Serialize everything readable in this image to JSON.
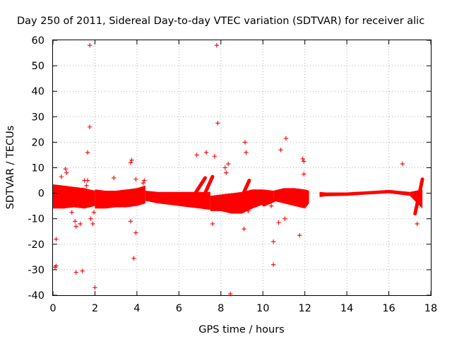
{
  "chart_data": {
    "type": "scatter",
    "title": "Day 250 of 2011, Sidereal Day-to-day VTEC variation (SDTVAR) for receiver alic",
    "xlabel": "GPS time / hours",
    "ylabel": "SDTVAR / TECUs",
    "xlim": [
      0,
      18
    ],
    "ylim": [
      -40,
      60
    ],
    "x_ticks": [
      0,
      2,
      4,
      6,
      8,
      10,
      12,
      14,
      16,
      18
    ],
    "y_ticks": [
      -40,
      -30,
      -20,
      -10,
      0,
      10,
      20,
      30,
      40,
      50,
      60
    ],
    "x_tick_labels": [
      "0",
      "2",
      "4",
      "6",
      "8",
      "10",
      "12",
      "14",
      "16",
      "18"
    ],
    "y_tick_labels": [
      "-40",
      "-30",
      "-20",
      "-10",
      "0",
      "10",
      "20",
      "30",
      "40",
      "50",
      "60"
    ],
    "grid": true,
    "marker": "+",
    "color": "#ff0000",
    "dense_bands": [
      {
        "name": "band-0-2h",
        "x": [
          0.0,
          0.5,
          1.0,
          1.5,
          2.0
        ],
        "upper": [
          3.5,
          3.0,
          2.5,
          2.0,
          1.0
        ],
        "lower": [
          -6.0,
          -6.0,
          -5.5,
          -6.0,
          -5.0
        ]
      },
      {
        "name": "band-2-4.4h",
        "x": [
          2.0,
          2.5,
          3.0,
          3.5,
          4.0,
          4.4
        ],
        "upper": [
          1.5,
          1.0,
          1.0,
          1.5,
          2.0,
          3.0
        ],
        "lower": [
          -6.0,
          -6.0,
          -5.5,
          -5.5,
          -5.0,
          -4.0
        ]
      },
      {
        "name": "band-4.4-7.5h",
        "x": [
          4.4,
          5.0,
          5.5,
          6.0,
          6.5,
          7.0,
          7.5
        ],
        "upper": [
          1.0,
          0.5,
          0.5,
          0.5,
          0.5,
          0.5,
          0.5
        ],
        "lower": [
          -3.0,
          -4.0,
          -4.5,
          -5.0,
          -5.5,
          -6.0,
          -6.5
        ]
      },
      {
        "name": "band-7.5-10.5h",
        "x": [
          7.5,
          8.0,
          8.5,
          9.0,
          9.5,
          10.0,
          10.5
        ],
        "upper": [
          -1.0,
          -0.5,
          0.0,
          0.5,
          1.5,
          1.5,
          1.0
        ],
        "lower": [
          -7.0,
          -7.0,
          -8.0,
          -8.0,
          -6.0,
          -4.5,
          -3.0
        ]
      },
      {
        "name": "band-10.5-12.2h",
        "x": [
          10.5,
          11.0,
          11.5,
          12.0,
          12.2
        ],
        "upper": [
          1.0,
          2.0,
          2.0,
          1.5,
          1.0
        ],
        "lower": [
          -3.0,
          -4.0,
          -5.0,
          -6.0,
          -4.0
        ]
      },
      {
        "name": "band-12.7-17.6h",
        "x": [
          12.7,
          13.0,
          14.0,
          15.0,
          16.0,
          17.0,
          17.6
        ],
        "upper": [
          0.5,
          0.3,
          0.3,
          0.8,
          1.3,
          0.5,
          1.5
        ],
        "lower": [
          -1.5,
          -1.2,
          -1.0,
          -0.5,
          0.0,
          -1.0,
          -6.0
        ]
      }
    ],
    "rising_streaks": [
      {
        "x": [
          6.7,
          7.25
        ],
        "y": [
          -1.0,
          6.0
        ]
      },
      {
        "x": [
          7.05,
          7.6
        ],
        "y": [
          -3.5,
          6.5
        ]
      },
      {
        "x": [
          8.8,
          9.35
        ],
        "y": [
          -5.0,
          5.0
        ]
      },
      {
        "x": [
          10.05,
          10.6
        ],
        "y": [
          -4.5,
          -2.5
        ]
      },
      {
        "x": [
          17.25,
          17.6
        ],
        "y": [
          -8.0,
          5.5
        ]
      }
    ],
    "outliers": {
      "x": [
        1.75,
        7.8,
        1.75,
        7.85,
        1.65,
        1.65,
        7.3,
        6.85,
        7.7,
        9.15,
        9.2,
        11.1,
        10.85,
        11.9,
        11.95,
        11.95,
        16.65,
        3.7,
        3.75,
        8.2,
        8.35,
        8.25,
        0.6,
        0.65,
        0.4,
        1.5,
        1.6,
        2.9,
        3.95,
        4.35,
        4.3,
        9.3,
        9.25,
        9.3,
        10.4,
        0.9,
        1.05,
        1.1,
        1.3,
        1.8,
        1.9,
        1.95,
        3.7,
        3.95,
        7.6,
        9.1,
        10.75,
        11.05,
        11.75,
        17.35,
        0.15,
        10.5,
        0.1,
        0.15,
        1.1,
        1.4,
        2.0,
        3.85,
        10.5,
        8.45
      ],
      "y": [
        58,
        58,
        26,
        27.5,
        16,
        5,
        16,
        15,
        14.5,
        20,
        16,
        21.5,
        17,
        13.5,
        12.5,
        7.5,
        11.5,
        12,
        13,
        10,
        11.5,
        8,
        9.5,
        8,
        6.5,
        5,
        3,
        6,
        5.5,
        5,
        4,
        -7,
        -5,
        -6.5,
        -5,
        -7.5,
        -11,
        -13,
        -12,
        -10,
        -12,
        -7.5,
        -11,
        -15.5,
        -12,
        -14,
        -11.5,
        -10,
        -16.5,
        -12,
        -18,
        -19,
        -29,
        -28.5,
        -31,
        -30.5,
        -37,
        -25.5,
        -28,
        -39.5
      ]
    }
  }
}
